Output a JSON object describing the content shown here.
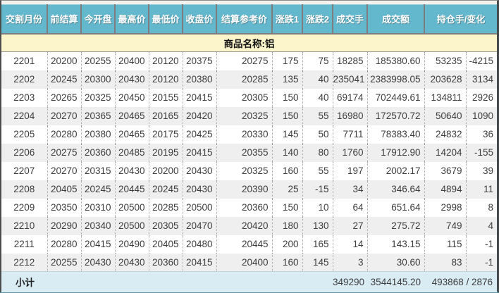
{
  "table": {
    "columns": [
      "交割月份",
      "前结算",
      "今开盘",
      "最高价",
      "最低价",
      "收盘价",
      "结算参考价",
      "涨跌1",
      "涨跌2",
      "成交手",
      "成交额",
      "持仓手/变化"
    ],
    "product_label": "商品名称:铝",
    "rows": [
      [
        "2201",
        "20200",
        "20255",
        "20400",
        "20120",
        "20375",
        "20275",
        "175",
        "75",
        "18285",
        "185380.60",
        "53235",
        "-4215"
      ],
      [
        "2202",
        "20245",
        "20300",
        "20430",
        "20120",
        "20380",
        "20285",
        "135",
        "40",
        "235041",
        "2383998.05",
        "203628",
        "3134"
      ],
      [
        "2203",
        "20265",
        "20325",
        "20450",
        "20155",
        "20415",
        "20305",
        "150",
        "40",
        "69174",
        "702449.61",
        "134811",
        "2926"
      ],
      [
        "2204",
        "20270",
        "20365",
        "20465",
        "20165",
        "20420",
        "20325",
        "150",
        "55",
        "16980",
        "172570.72",
        "50640",
        "1090"
      ],
      [
        "2205",
        "20280",
        "20380",
        "20465",
        "20175",
        "20425",
        "20330",
        "145",
        "50",
        "7711",
        "78383.40",
        "24832",
        "36"
      ],
      [
        "2206",
        "20275",
        "20360",
        "20485",
        "20195",
        "20415",
        "20355",
        "140",
        "80",
        "1760",
        "17912.90",
        "14204",
        "-155"
      ],
      [
        "2207",
        "20270",
        "20315",
        "20430",
        "20200",
        "20430",
        "20325",
        "160",
        "55",
        "197",
        "2002.17",
        "3679",
        "39"
      ],
      [
        "2208",
        "20405",
        "20245",
        "20445",
        "20245",
        "20430",
        "20390",
        "25",
        "-15",
        "34",
        "346.64",
        "4894",
        "11"
      ],
      [
        "2209",
        "20350",
        "20310",
        "20500",
        "20285",
        "20500",
        "20360",
        "150",
        "10",
        "64",
        "651.64",
        "2998",
        "8"
      ],
      [
        "2210",
        "20290",
        "20340",
        "20500",
        "20305",
        "20470",
        "20420",
        "180",
        "130",
        "27",
        "275.72",
        "749",
        "4"
      ],
      [
        "2211",
        "20280",
        "20415",
        "20490",
        "20405",
        "20480",
        "20445",
        "200",
        "165",
        "14",
        "143.15",
        "115",
        "-1"
      ],
      [
        "2212",
        "20255",
        "20430",
        "20430",
        "20360",
        "20415",
        "20400",
        "160",
        "145",
        "3",
        "30.60",
        "83",
        "-1"
      ]
    ],
    "subtotal": {
      "label": "小计",
      "volume": "349290",
      "turnover": "3544145.20",
      "open_interest_change": "493868 / 2876"
    }
  },
  "colors": {
    "header_bg": "#64b8ce",
    "header_text": "#ffffff",
    "product_row_bg": "#fcf5cc",
    "row_bg": "#ffffff",
    "alt_row_bg": "#efefef",
    "subtotal_row_bg": "#d9ecf4",
    "text": "#3d3d3d"
  }
}
